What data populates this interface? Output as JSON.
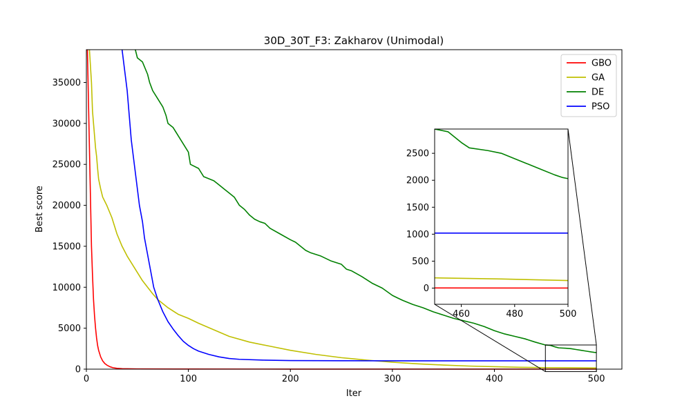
{
  "chart_data": {
    "type": "line",
    "title": "30D_30T_F3: Zakharov (Unimodal)",
    "xlabel": "Iter",
    "ylabel": "Best score",
    "xlim": [
      0,
      525
    ],
    "ylim": [
      0,
      39000
    ],
    "xticks": [
      0,
      100,
      200,
      300,
      400,
      500
    ],
    "yticks": [
      0,
      5000,
      10000,
      15000,
      20000,
      25000,
      30000,
      35000
    ],
    "legend_position": "top-right",
    "series": [
      {
        "name": "GBO",
        "color": "#ff0000",
        "points": [
          [
            1,
            39000
          ],
          [
            2,
            33000
          ],
          [
            3,
            27000
          ],
          [
            4,
            21000
          ],
          [
            5,
            15000
          ],
          [
            6,
            11500
          ],
          [
            7,
            8500
          ],
          [
            8,
            6500
          ],
          [
            9,
            5000
          ],
          [
            10,
            3800
          ],
          [
            11,
            2900
          ],
          [
            12,
            2300
          ],
          [
            14,
            1500
          ],
          [
            16,
            1000
          ],
          [
            18,
            700
          ],
          [
            20,
            500
          ],
          [
            23,
            300
          ],
          [
            26,
            180
          ],
          [
            30,
            100
          ],
          [
            35,
            60
          ],
          [
            50,
            30
          ],
          [
            100,
            15
          ],
          [
            200,
            8
          ],
          [
            300,
            5
          ],
          [
            400,
            3
          ],
          [
            500,
            2
          ]
        ]
      },
      {
        "name": "GA",
        "color": "#bfbf00",
        "points": [
          [
            3,
            39000
          ],
          [
            5,
            35000
          ],
          [
            6,
            31500
          ],
          [
            7,
            30000
          ],
          [
            8,
            28500
          ],
          [
            9,
            27000
          ],
          [
            10,
            26000
          ],
          [
            11,
            24500
          ],
          [
            12,
            23200
          ],
          [
            14,
            22000
          ],
          [
            16,
            21000
          ],
          [
            18,
            20500
          ],
          [
            20,
            20000
          ],
          [
            25,
            18500
          ],
          [
            30,
            16500
          ],
          [
            35,
            15000
          ],
          [
            40,
            13800
          ],
          [
            45,
            12800
          ],
          [
            50,
            11800
          ],
          [
            55,
            10800
          ],
          [
            60,
            10000
          ],
          [
            65,
            9200
          ],
          [
            70,
            8500
          ],
          [
            80,
            7500
          ],
          [
            90,
            6700
          ],
          [
            100,
            6200
          ],
          [
            110,
            5600
          ],
          [
            125,
            4800
          ],
          [
            140,
            4000
          ],
          [
            160,
            3300
          ],
          [
            180,
            2800
          ],
          [
            200,
            2300
          ],
          [
            225,
            1800
          ],
          [
            250,
            1400
          ],
          [
            275,
            1100
          ],
          [
            300,
            850
          ],
          [
            325,
            650
          ],
          [
            350,
            500
          ],
          [
            375,
            380
          ],
          [
            400,
            300
          ],
          [
            425,
            230
          ],
          [
            450,
            190
          ],
          [
            475,
            170
          ],
          [
            500,
            140
          ]
        ]
      },
      {
        "name": "DE",
        "color": "#008000",
        "points": [
          [
            48,
            39000
          ],
          [
            50,
            38000
          ],
          [
            55,
            37500
          ],
          [
            60,
            36000
          ],
          [
            62,
            35000
          ],
          [
            65,
            34000
          ],
          [
            70,
            33000
          ],
          [
            75,
            32000
          ],
          [
            78,
            31000
          ],
          [
            80,
            30000
          ],
          [
            85,
            29500
          ],
          [
            90,
            28500
          ],
          [
            95,
            27500
          ],
          [
            100,
            26500
          ],
          [
            102,
            25000
          ],
          [
            110,
            24500
          ],
          [
            115,
            23500
          ],
          [
            125,
            23000
          ],
          [
            130,
            22500
          ],
          [
            135,
            22000
          ],
          [
            140,
            21500
          ],
          [
            145,
            21000
          ],
          [
            150,
            20000
          ],
          [
            155,
            19500
          ],
          [
            160,
            18800
          ],
          [
            165,
            18300
          ],
          [
            170,
            18000
          ],
          [
            175,
            17800
          ],
          [
            180,
            17200
          ],
          [
            190,
            16500
          ],
          [
            200,
            15800
          ],
          [
            205,
            15500
          ],
          [
            215,
            14500
          ],
          [
            220,
            14200
          ],
          [
            225,
            14000
          ],
          [
            230,
            13800
          ],
          [
            240,
            13200
          ],
          [
            250,
            12800
          ],
          [
            255,
            12200
          ],
          [
            260,
            12000
          ],
          [
            270,
            11300
          ],
          [
            280,
            10500
          ],
          [
            290,
            9900
          ],
          [
            300,
            9000
          ],
          [
            305,
            8700
          ],
          [
            310,
            8400
          ],
          [
            320,
            7900
          ],
          [
            330,
            7500
          ],
          [
            340,
            7000
          ],
          [
            350,
            6600
          ],
          [
            360,
            6200
          ],
          [
            370,
            5900
          ],
          [
            380,
            5600
          ],
          [
            390,
            5200
          ],
          [
            400,
            4700
          ],
          [
            410,
            4300
          ],
          [
            420,
            4000
          ],
          [
            430,
            3700
          ],
          [
            440,
            3300
          ],
          [
            450,
            2950
          ],
          [
            455,
            2900
          ],
          [
            460,
            2700
          ],
          [
            463,
            2600
          ],
          [
            470,
            2550
          ],
          [
            475,
            2500
          ],
          [
            480,
            2400
          ],
          [
            485,
            2300
          ],
          [
            490,
            2200
          ],
          [
            495,
            2100
          ],
          [
            498,
            2050
          ],
          [
            500,
            2030
          ]
        ]
      },
      {
        "name": "PSO",
        "color": "#0000ff",
        "points": [
          [
            35,
            39000
          ],
          [
            37,
            37000
          ],
          [
            38,
            36000
          ],
          [
            40,
            34000
          ],
          [
            42,
            31000
          ],
          [
            44,
            28000
          ],
          [
            46,
            26000
          ],
          [
            48,
            24000
          ],
          [
            50,
            22000
          ],
          [
            52,
            20000
          ],
          [
            55,
            18000
          ],
          [
            57,
            16000
          ],
          [
            60,
            14000
          ],
          [
            63,
            12000
          ],
          [
            66,
            10000
          ],
          [
            70,
            8500
          ],
          [
            75,
            7000
          ],
          [
            80,
            5800
          ],
          [
            85,
            4900
          ],
          [
            90,
            4100
          ],
          [
            95,
            3400
          ],
          [
            100,
            2900
          ],
          [
            105,
            2500
          ],
          [
            110,
            2200
          ],
          [
            120,
            1800
          ],
          [
            130,
            1500
          ],
          [
            140,
            1300
          ],
          [
            150,
            1200
          ],
          [
            175,
            1100
          ],
          [
            200,
            1050
          ],
          [
            250,
            1030
          ],
          [
            300,
            1020
          ],
          [
            500,
            1020
          ]
        ]
      }
    ],
    "inset": {
      "xlim": [
        450,
        500
      ],
      "ylim": [
        -300,
        2950
      ],
      "xticks": [
        460,
        480,
        500
      ],
      "yticks": [
        0,
        500,
        1000,
        1500,
        2000,
        2500
      ]
    }
  }
}
